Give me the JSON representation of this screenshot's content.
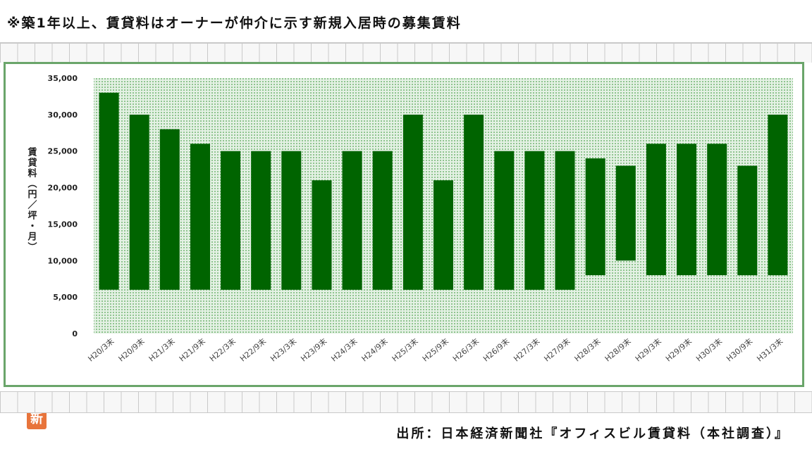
{
  "note": "※築1年以上、賃貸料はオーナーが仲介に示す新規入居時の募集賃料",
  "source": "出所：日本経済新聞社『オフィスビル賃貸料（本社調査）』",
  "logo_text": "新",
  "colors": {
    "bar": "#006400",
    "frame": "#6aa56a",
    "plot_bg": "#d9ecd9"
  },
  "chart_data": {
    "type": "bar",
    "subtype": "floating-range",
    "ylabel": "賃貸料（円／坪・月）",
    "ylim": [
      0,
      35000
    ],
    "yticks": [
      "0",
      "5,000",
      "10,000",
      "15,000",
      "20,000",
      "25,000",
      "30,000",
      "35,000"
    ],
    "ytick_values": [
      0,
      5000,
      10000,
      15000,
      20000,
      25000,
      30000,
      35000
    ],
    "categories": [
      "H20/3末",
      "H20/9末",
      "H21/3末",
      "H21/9末",
      "H22/3末",
      "H22/9末",
      "H23/3末",
      "H23/9末",
      "H24/3末",
      "H24/9末",
      "H25/3末",
      "H25/9末",
      "H26/3末",
      "H26/9末",
      "H27/3末",
      "H27/9末",
      "H28/3末",
      "H28/9末",
      "H29/3末",
      "H29/9末",
      "H30/3末",
      "H30/9末",
      "H31/3末"
    ],
    "series": [
      {
        "low": [
          6000,
          6000,
          6000,
          6000,
          6000,
          6000,
          6000,
          6000,
          6000,
          6000,
          6000,
          6000,
          6000,
          6000,
          6000,
          6000,
          8000,
          10000,
          8000,
          8000,
          8000,
          8000,
          8000
        ],
        "high": [
          33000,
          30000,
          28000,
          26000,
          25000,
          25000,
          25000,
          21000,
          25000,
          25000,
          30000,
          21000,
          30000,
          25000,
          25000,
          25000,
          24000,
          23000,
          26000,
          26000,
          26000,
          23000,
          30000
        ]
      }
    ],
    "grid": false,
    "legend": "none"
  }
}
